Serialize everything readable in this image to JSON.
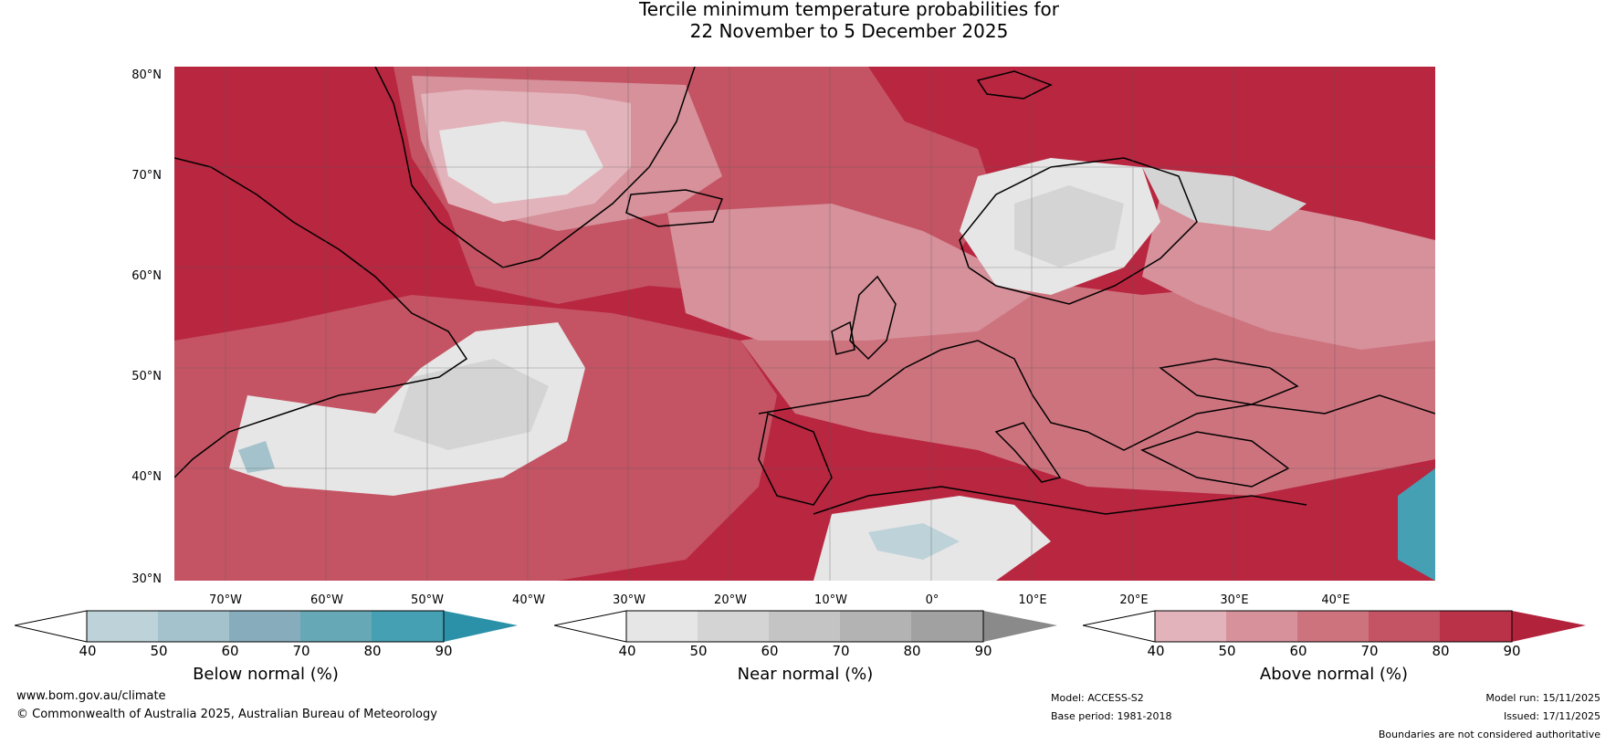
{
  "title": {
    "line1": "Tercile minimum temperature probabilities for",
    "line2": "22 November to 5 December 2025"
  },
  "map": {
    "lat_labels": [
      "80°N",
      "70°N",
      "60°N",
      "50°N",
      "40°N",
      "30°N"
    ],
    "lon_labels": [
      "70°W",
      "60°W",
      "50°W",
      "40°W",
      "30°W",
      "20°W",
      "10°W",
      "0°",
      "10°E",
      "20°E",
      "30°E",
      "40°E"
    ],
    "extent": {
      "lon_min": -75,
      "lon_max": 50,
      "lat_min": 30,
      "lat_max": 81
    }
  },
  "colorbars": [
    {
      "label": "Below normal (%)",
      "ticks": [
        "40",
        "50",
        "60",
        "70",
        "80",
        "90"
      ],
      "colors": [
        "#ffffff",
        "#bdd2d9",
        "#a3c2cb",
        "#87adbd",
        "#66a8b5",
        "#45a0b4",
        "#2b91a8"
      ]
    },
    {
      "label": "Near normal (%)",
      "ticks": [
        "40",
        "50",
        "60",
        "70",
        "80",
        "90"
      ],
      "colors": [
        "#ffffff",
        "#e6e6e6",
        "#d4d4d4",
        "#c4c4c4",
        "#b3b3b3",
        "#a1a1a1",
        "#8a8a8a"
      ]
    },
    {
      "label": "Above normal (%)",
      "ticks": [
        "40",
        "50",
        "60",
        "70",
        "80",
        "90"
      ],
      "colors": [
        "#ffffff",
        "#e3b3bb",
        "#d6919b",
        "#cd737e",
        "#c45463",
        "#b93248",
        "#b2223b"
      ]
    }
  ],
  "footer": {
    "url": "www.bom.gov.au/climate",
    "copyright": "© Commonwealth of Australia 2025, Australian Bureau of Meteorology",
    "model": "Model: ACCESS-S2",
    "base_period": "Base period: 1981-2018",
    "model_run": "Model run: 15/11/2025",
    "issued": "Issued: 17/11/2025",
    "disclaimer": "Boundaries are not considered authoritative"
  }
}
